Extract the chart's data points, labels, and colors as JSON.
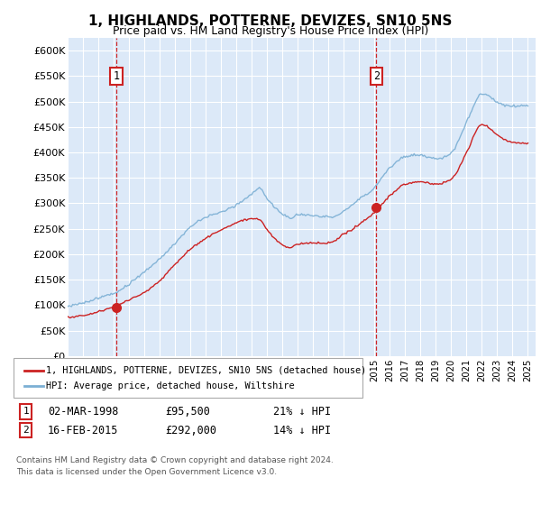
{
  "title": "1, HIGHLANDS, POTTERNE, DEVIZES, SN10 5NS",
  "subtitle": "Price paid vs. HM Land Registry's House Price Index (HPI)",
  "ylabel_ticks": [
    "£0",
    "£50K",
    "£100K",
    "£150K",
    "£200K",
    "£250K",
    "£300K",
    "£350K",
    "£400K",
    "£450K",
    "£500K",
    "£550K",
    "£600K"
  ],
  "ytick_values": [
    0,
    50000,
    100000,
    150000,
    200000,
    250000,
    300000,
    350000,
    400000,
    450000,
    500000,
    550000,
    600000
  ],
  "ylim": [
    0,
    625000
  ],
  "xlim_start": 1995.0,
  "xlim_end": 2025.5,
  "background_color": "#dce9f8",
  "grid_color": "#ffffff",
  "sale1_x": 1998.17,
  "sale1_y": 95500,
  "sale1_label": "1",
  "sale2_x": 2015.12,
  "sale2_y": 292000,
  "sale2_label": "2",
  "legend_line1": "1, HIGHLANDS, POTTERNE, DEVIZES, SN10 5NS (detached house)",
  "legend_line2": "HPI: Average price, detached house, Wiltshire",
  "table_row1": [
    "1",
    "02-MAR-1998",
    "£95,500",
    "21% ↓ HPI"
  ],
  "table_row2": [
    "2",
    "16-FEB-2015",
    "£292,000",
    "14% ↓ HPI"
  ],
  "footer": "Contains HM Land Registry data © Crown copyright and database right 2024.\nThis data is licensed under the Open Government Licence v3.0.",
  "hpi_color": "#7bafd4",
  "sale_color": "#cc2222",
  "vline_color": "#cc0000",
  "hpi_knots_x": [
    1995.0,
    1996.0,
    1997.0,
    1998.0,
    1999.0,
    2000.0,
    2001.0,
    2002.0,
    2003.0,
    2004.0,
    2005.0,
    2006.0,
    2007.0,
    2007.5,
    2008.0,
    2009.0,
    2009.5,
    2010.0,
    2011.0,
    2012.0,
    2013.0,
    2014.0,
    2015.0,
    2016.0,
    2017.0,
    2018.0,
    2019.0,
    2020.0,
    2021.0,
    2022.0,
    2022.5,
    2023.0,
    2024.0,
    2025.0
  ],
  "hpi_knots_y": [
    98000,
    103000,
    112000,
    122000,
    142000,
    165000,
    192000,
    222000,
    252000,
    272000,
    282000,
    298000,
    318000,
    330000,
    310000,
    278000,
    270000,
    278000,
    275000,
    273000,
    285000,
    308000,
    332000,
    370000,
    392000,
    396000,
    390000,
    400000,
    460000,
    515000,
    510000,
    498000,
    490000,
    492000
  ],
  "sale_knots_x": [
    1995.0,
    1996.0,
    1997.0,
    1998.0,
    1999.0,
    2000.0,
    2001.0,
    2002.0,
    2003.0,
    2004.0,
    2005.0,
    2006.0,
    2007.0,
    2007.5,
    2008.0,
    2009.0,
    2009.5,
    2010.0,
    2011.0,
    2012.0,
    2013.0,
    2014.0,
    2015.0,
    2016.0,
    2017.0,
    2018.0,
    2019.0,
    2020.0,
    2021.0,
    2022.0,
    2022.5,
    2023.0,
    2024.0,
    2025.0
  ],
  "sale_knots_y": [
    76000,
    80000,
    87000,
    95500,
    108000,
    125000,
    148000,
    180000,
    210000,
    232000,
    248000,
    262000,
    270000,
    268000,
    248000,
    218000,
    212000,
    220000,
    222000,
    220000,
    238000,
    258000,
    282000,
    315000,
    338000,
    342000,
    338000,
    348000,
    400000,
    455000,
    448000,
    435000,
    420000,
    418000
  ]
}
